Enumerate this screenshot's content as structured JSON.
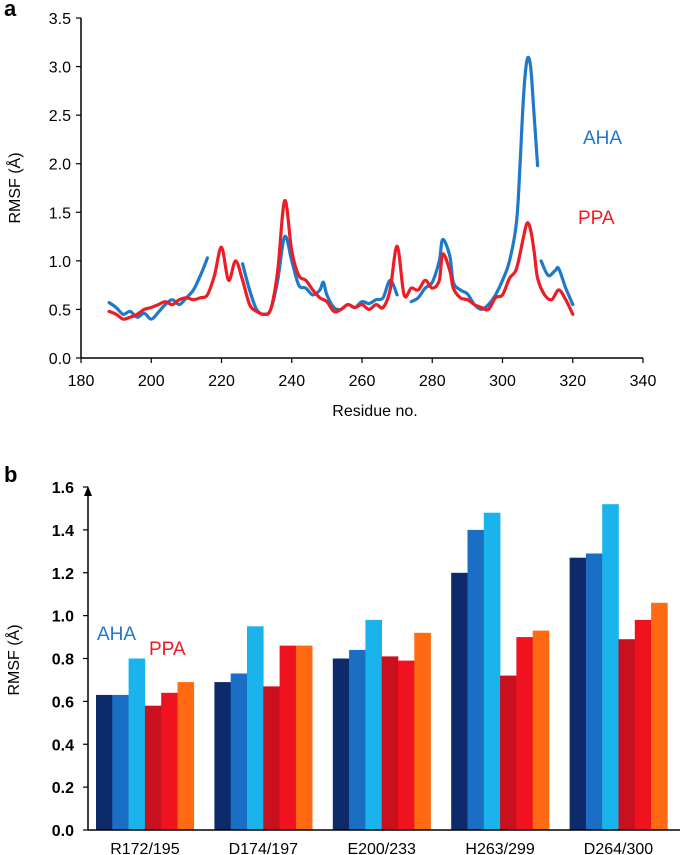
{
  "chart_data": [
    {
      "panel": "a",
      "type": "line",
      "xlabel": "Residue no.",
      "ylabel": "RMSF (Å)",
      "xlim": [
        180,
        340
      ],
      "ylim": [
        0,
        3.5
      ],
      "xticks": [
        "180",
        "200",
        "220",
        "240",
        "260",
        "280",
        "300",
        "320",
        "340"
      ],
      "yticks": [
        "0.0",
        "0.5",
        "1.0",
        "1.5",
        "2.0",
        "2.5",
        "3.0",
        "3.5"
      ],
      "legend": [
        {
          "name": "AHA",
          "color": "#1f78c8"
        },
        {
          "name": "PPA",
          "color": "#ee1c25"
        }
      ],
      "series": [
        {
          "name": "AHA",
          "color": "#1f78c8",
          "segments": [
            [
              [
                188,
                0.57
              ],
              [
                190,
                0.52
              ],
              [
                192,
                0.45
              ],
              [
                194,
                0.48
              ],
              [
                196,
                0.42
              ],
              [
                198,
                0.46
              ],
              [
                200,
                0.4
              ],
              [
                202,
                0.47
              ],
              [
                204,
                0.55
              ],
              [
                206,
                0.6
              ],
              [
                208,
                0.55
              ],
              [
                210,
                0.62
              ],
              [
                212,
                0.7
              ],
              [
                214,
                0.85
              ],
              [
                216,
                1.03
              ]
            ],
            [
              [
                226,
                0.97
              ],
              [
                228,
                0.7
              ],
              [
                230,
                0.5
              ],
              [
                232,
                0.45
              ],
              [
                234,
                0.5
              ],
              [
                236,
                0.8
              ],
              [
                238,
                1.25
              ],
              [
                240,
                1.0
              ],
              [
                242,
                0.75
              ],
              [
                244,
                0.72
              ],
              [
                246,
                0.65
              ],
              [
                248,
                0.7
              ],
              [
                249,
                0.78
              ],
              [
                250,
                0.65
              ],
              [
                252,
                0.52
              ],
              [
                254,
                0.5
              ],
              [
                256,
                0.55
              ],
              [
                258,
                0.52
              ],
              [
                260,
                0.58
              ],
              [
                262,
                0.56
              ],
              [
                264,
                0.6
              ],
              [
                266,
                0.62
              ],
              [
                268,
                0.8
              ],
              [
                270,
                0.65
              ]
            ],
            [
              [
                274,
                0.58
              ],
              [
                276,
                0.62
              ],
              [
                278,
                0.72
              ],
              [
                280,
                0.78
              ],
              [
                282,
                1.0
              ],
              [
                283,
                1.22
              ],
              [
                285,
                1.05
              ],
              [
                286,
                0.78
              ],
              [
                288,
                0.7
              ],
              [
                290,
                0.66
              ],
              [
                292,
                0.55
              ],
              [
                294,
                0.5
              ],
              [
                296,
                0.55
              ],
              [
                298,
                0.65
              ],
              [
                300,
                0.8
              ],
              [
                302,
                1.0
              ],
              [
                304,
                1.4
              ],
              [
                305,
                2.0
              ],
              [
                306,
                2.7
              ],
              [
                307,
                3.07
              ],
              [
                308,
                3.0
              ],
              [
                309,
                2.5
              ],
              [
                310,
                1.98
              ]
            ],
            [
              [
                311,
                1.0
              ],
              [
                313,
                0.85
              ],
              [
                315,
                0.9
              ],
              [
                316,
                0.92
              ],
              [
                318,
                0.72
              ],
              [
                320,
                0.55
              ]
            ]
          ]
        },
        {
          "name": "PPA",
          "color": "#ee1c25",
          "segments": [
            [
              [
                188,
                0.48
              ],
              [
                190,
                0.45
              ],
              [
                192,
                0.4
              ],
              [
                194,
                0.42
              ],
              [
                196,
                0.45
              ],
              [
                198,
                0.5
              ],
              [
                200,
                0.52
              ],
              [
                202,
                0.55
              ],
              [
                204,
                0.58
              ],
              [
                206,
                0.55
              ],
              [
                208,
                0.6
              ],
              [
                210,
                0.62
              ],
              [
                212,
                0.6
              ],
              [
                214,
                0.62
              ],
              [
                216,
                0.65
              ],
              [
                218,
                0.85
              ],
              [
                220,
                1.14
              ],
              [
                222,
                0.8
              ],
              [
                224,
                1.0
              ],
              [
                226,
                0.8
              ],
              [
                228,
                0.55
              ],
              [
                230,
                0.48
              ],
              [
                232,
                0.45
              ],
              [
                234,
                0.5
              ],
              [
                236,
                0.9
              ],
              [
                238,
                1.62
              ],
              [
                240,
                1.1
              ],
              [
                242,
                0.85
              ],
              [
                244,
                0.8
              ],
              [
                246,
                0.7
              ],
              [
                248,
                0.62
              ],
              [
                250,
                0.58
              ],
              [
                252,
                0.48
              ],
              [
                254,
                0.5
              ],
              [
                256,
                0.55
              ],
              [
                258,
                0.52
              ],
              [
                260,
                0.55
              ],
              [
                262,
                0.5
              ],
              [
                264,
                0.55
              ],
              [
                266,
                0.52
              ],
              [
                268,
                0.7
              ],
              [
                270,
                1.15
              ],
              [
                272,
                0.65
              ],
              [
                274,
                0.72
              ],
              [
                276,
                0.7
              ],
              [
                278,
                0.8
              ],
              [
                280,
                0.72
              ],
              [
                282,
                0.8
              ],
              [
                283,
                1.07
              ],
              [
                285,
                0.9
              ],
              [
                286,
                0.72
              ],
              [
                288,
                0.62
              ],
              [
                290,
                0.6
              ],
              [
                292,
                0.55
              ],
              [
                294,
                0.52
              ],
              [
                296,
                0.5
              ],
              [
                298,
                0.62
              ],
              [
                300,
                0.65
              ],
              [
                302,
                0.82
              ],
              [
                304,
                0.92
              ],
              [
                306,
                1.25
              ],
              [
                307,
                1.39
              ],
              [
                308,
                1.32
              ],
              [
                309,
                1.1
              ],
              [
                310,
                0.82
              ],
              [
                312,
                0.65
              ],
              [
                314,
                0.6
              ],
              [
                316,
                0.7
              ],
              [
                318,
                0.6
              ],
              [
                320,
                0.45
              ]
            ]
          ]
        }
      ]
    },
    {
      "panel": "b",
      "type": "bar",
      "ylabel": "RMSF (Å)",
      "ylim": [
        0,
        1.6
      ],
      "yticks": [
        "0.0",
        "0.2",
        "0.4",
        "0.6",
        "0.8",
        "1.0",
        "1.2",
        "1.4",
        "1.6"
      ],
      "categories": [
        "R172/195",
        "D174/197",
        "E200/233",
        "H263/299",
        "D264/300"
      ],
      "legend": [
        {
          "name": "AHA",
          "color": "#1f78c8"
        },
        {
          "name": "PPA",
          "color": "#ee1c25"
        }
      ],
      "series": [
        {
          "group": "AHA",
          "color": "#0d2a6b",
          "values": [
            0.63,
            0.69,
            0.8,
            1.2,
            1.27
          ]
        },
        {
          "group": "AHA",
          "color": "#1a6ec4",
          "values": [
            0.63,
            0.73,
            0.84,
            1.4,
            1.29
          ]
        },
        {
          "group": "AHA",
          "color": "#1ab3ec",
          "values": [
            0.8,
            0.95,
            0.98,
            1.48,
            1.52
          ]
        },
        {
          "group": "PPA",
          "color": "#c8101e",
          "values": [
            0.58,
            0.67,
            0.81,
            0.72,
            0.89
          ]
        },
        {
          "group": "PPA",
          "color": "#f0121e",
          "values": [
            0.64,
            0.86,
            0.79,
            0.9,
            0.98
          ]
        },
        {
          "group": "PPA",
          "color": "#ff6a13",
          "values": [
            0.69,
            0.86,
            0.92,
            0.93,
            1.06
          ]
        }
      ]
    }
  ],
  "panel_labels": {
    "a": "a",
    "b": "b"
  }
}
